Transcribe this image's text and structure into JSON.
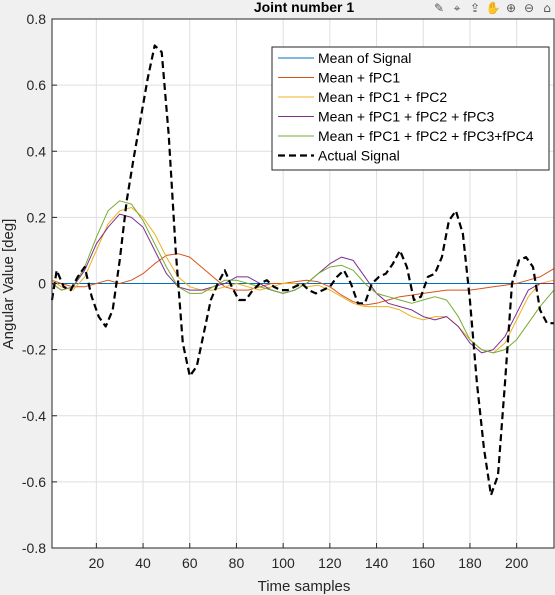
{
  "toolbar": {
    "items": [
      {
        "name": "brush-icon",
        "glyph": "✎"
      },
      {
        "name": "data-tip-icon",
        "glyph": "⌖"
      },
      {
        "name": "export-icon",
        "glyph": "⇪"
      },
      {
        "name": "pan-icon",
        "glyph": "✋"
      },
      {
        "name": "zoom-in-icon",
        "glyph": "⊕"
      },
      {
        "name": "zoom-out-icon",
        "glyph": "⊖"
      },
      {
        "name": "home-icon",
        "glyph": "⌂"
      }
    ]
  },
  "chart_data": {
    "type": "line",
    "title": "Joint number 1",
    "xlabel": "Time samples",
    "ylabel": "Angular Value [deg]",
    "xlim": [
      1,
      216
    ],
    "ylim": [
      -0.8,
      0.8
    ],
    "xticks": [
      20,
      40,
      60,
      80,
      100,
      120,
      140,
      160,
      180,
      200
    ],
    "yticks": [
      -0.8,
      -0.6,
      -0.4,
      -0.2,
      0,
      0.2,
      0.4,
      0.6,
      0.8
    ],
    "grid": true,
    "legend_position": "top-right",
    "series": [
      {
        "name": "Mean of Signal",
        "color": "#0072bd",
        "dash": "solid",
        "x": [
          1,
          216
        ],
        "y": [
          0,
          0
        ]
      },
      {
        "name": "Mean + fPC1",
        "color": "#d95319",
        "dash": "solid",
        "x": [
          1,
          5,
          10,
          15,
          20,
          25,
          30,
          35,
          40,
          45,
          50,
          55,
          60,
          65,
          70,
          75,
          80,
          85,
          90,
          95,
          100,
          105,
          110,
          115,
          120,
          125,
          130,
          135,
          140,
          145,
          150,
          155,
          160,
          165,
          170,
          175,
          180,
          185,
          190,
          195,
          200,
          205,
          210,
          216
        ],
        "y": [
          0.01,
          0.0,
          -0.01,
          -0.01,
          0.0,
          0.01,
          0.0,
          0.01,
          0.03,
          0.06,
          0.085,
          0.09,
          0.08,
          0.05,
          0.02,
          -0.01,
          -0.02,
          -0.02,
          -0.01,
          0.0,
          0.0,
          0.005,
          0.01,
          0.005,
          -0.01,
          -0.035,
          -0.055,
          -0.065,
          -0.06,
          -0.05,
          -0.04,
          -0.035,
          -0.03,
          -0.025,
          -0.02,
          -0.02,
          -0.02,
          -0.015,
          -0.01,
          -0.005,
          0.0,
          0.01,
          0.02,
          0.045
        ]
      },
      {
        "name": "Mean + fPC1 + fPC2",
        "color": "#edb120",
        "dash": "solid",
        "x": [
          1,
          5,
          10,
          15,
          20,
          25,
          30,
          35,
          40,
          45,
          50,
          55,
          60,
          65,
          70,
          75,
          80,
          85,
          90,
          95,
          100,
          105,
          110,
          115,
          120,
          125,
          130,
          135,
          140,
          145,
          150,
          155,
          160,
          165,
          170,
          175,
          180,
          185,
          190,
          195,
          200,
          205,
          210,
          216
        ],
        "y": [
          0.01,
          -0.01,
          -0.02,
          0.02,
          0.1,
          0.18,
          0.22,
          0.23,
          0.2,
          0.15,
          0.08,
          0.02,
          -0.01,
          -0.02,
          -0.02,
          -0.01,
          0.0,
          -0.01,
          -0.02,
          -0.01,
          0.0,
          0.0,
          -0.01,
          -0.005,
          -0.02,
          -0.04,
          -0.06,
          -0.07,
          -0.07,
          -0.07,
          -0.08,
          -0.1,
          -0.11,
          -0.1,
          -0.1,
          -0.13,
          -0.17,
          -0.2,
          -0.21,
          -0.18,
          -0.11,
          -0.04,
          0.0,
          0.01
        ]
      },
      {
        "name": "Mean + fPC1 + fPC2 + fPC3",
        "color": "#7e2f8e",
        "dash": "solid",
        "x": [
          1,
          5,
          10,
          15,
          20,
          25,
          30,
          35,
          40,
          45,
          50,
          55,
          60,
          65,
          70,
          75,
          80,
          85,
          90,
          95,
          100,
          105,
          110,
          115,
          120,
          125,
          130,
          135,
          140,
          145,
          150,
          155,
          160,
          165,
          170,
          175,
          180,
          185,
          190,
          195,
          200,
          205,
          210,
          216
        ],
        "y": [
          0.0,
          -0.02,
          -0.01,
          0.04,
          0.12,
          0.17,
          0.21,
          0.2,
          0.17,
          0.1,
          0.03,
          -0.01,
          -0.02,
          -0.02,
          -0.01,
          0.0,
          0.02,
          0.02,
          0.0,
          -0.02,
          -0.03,
          -0.02,
          0.0,
          0.03,
          0.06,
          0.08,
          0.07,
          0.02,
          -0.03,
          -0.06,
          -0.07,
          -0.08,
          -0.1,
          -0.11,
          -0.1,
          -0.13,
          -0.18,
          -0.21,
          -0.2,
          -0.16,
          -0.09,
          -0.02,
          0.0,
          0.0
        ]
      },
      {
        "name": "Mean + fPC1 + fPC2 + fPC3+fPC4",
        "color": "#77ac30",
        "dash": "solid",
        "x": [
          1,
          5,
          10,
          15,
          20,
          25,
          30,
          35,
          40,
          45,
          50,
          55,
          60,
          65,
          70,
          75,
          80,
          85,
          90,
          95,
          100,
          105,
          110,
          115,
          120,
          125,
          130,
          135,
          140,
          145,
          150,
          155,
          160,
          165,
          170,
          175,
          180,
          185,
          190,
          195,
          200,
          205,
          210,
          216
        ],
        "y": [
          0.0,
          -0.02,
          -0.01,
          0.05,
          0.14,
          0.22,
          0.25,
          0.24,
          0.19,
          0.12,
          0.05,
          -0.01,
          -0.03,
          -0.03,
          -0.01,
          0.01,
          0.01,
          0.0,
          -0.01,
          -0.02,
          -0.03,
          -0.02,
          0.0,
          0.03,
          0.05,
          0.055,
          0.04,
          0.0,
          -0.03,
          -0.04,
          -0.05,
          -0.06,
          -0.05,
          -0.04,
          -0.05,
          -0.1,
          -0.17,
          -0.2,
          -0.21,
          -0.2,
          -0.17,
          -0.12,
          -0.07,
          -0.02
        ]
      },
      {
        "name": "Actual Signal",
        "color": "#000000",
        "dash": "dashed",
        "x": [
          1,
          3,
          6,
          9,
          12,
          15,
          18,
          21,
          24,
          27,
          30,
          33,
          36,
          39,
          42,
          45,
          48,
          51,
          54,
          57,
          60,
          63,
          66,
          69,
          72,
          75,
          78,
          81,
          84,
          87,
          90,
          93,
          96,
          99,
          102,
          105,
          108,
          111,
          114,
          117,
          120,
          123,
          126,
          129,
          132,
          135,
          138,
          141,
          144,
          147,
          150,
          153,
          156,
          159,
          162,
          165,
          168,
          171,
          174,
          177,
          180,
          183,
          186,
          189,
          192,
          195,
          198,
          201,
          204,
          207,
          210,
          213,
          216
        ],
        "y": [
          -0.05,
          0.04,
          -0.01,
          -0.02,
          0.02,
          0.05,
          -0.04,
          -0.1,
          -0.13,
          -0.08,
          0.07,
          0.25,
          0.38,
          0.5,
          0.62,
          0.72,
          0.7,
          0.45,
          0.1,
          -0.18,
          -0.28,
          -0.25,
          -0.15,
          -0.05,
          0.0,
          0.04,
          -0.01,
          -0.05,
          -0.05,
          -0.02,
          0.0,
          0.01,
          -0.01,
          -0.02,
          -0.02,
          -0.01,
          0.0,
          -0.02,
          -0.03,
          -0.02,
          -0.01,
          0.02,
          0.04,
          0.0,
          -0.06,
          -0.06,
          0.0,
          0.02,
          0.03,
          0.06,
          0.1,
          0.05,
          -0.05,
          -0.04,
          0.02,
          0.03,
          0.08,
          0.19,
          0.22,
          0.15,
          -0.05,
          -0.3,
          -0.5,
          -0.64,
          -0.58,
          -0.3,
          0.0,
          0.07,
          0.08,
          0.05,
          -0.08,
          -0.12,
          -0.12
        ]
      }
    ]
  }
}
